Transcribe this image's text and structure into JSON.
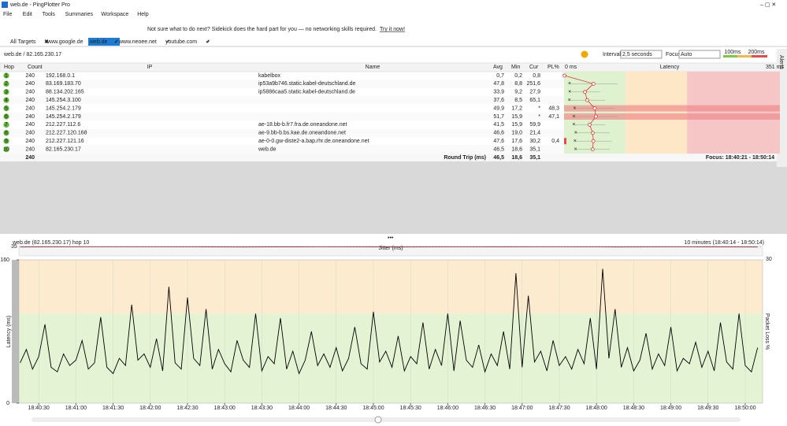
{
  "window": {
    "title": "web.de - PingPlotter Pro"
  },
  "menu": [
    "File",
    "Edit",
    "Tools",
    "Summaries",
    "Workspace",
    "Help"
  ],
  "banner": {
    "text": "Not sure what to do next? Sidekick does the hard part for you — no networking skills required.",
    "link": "Try it now!"
  },
  "tabs": [
    "All Targets",
    "www.google.de",
    "web.de",
    "www.neoee.net",
    "youtube.com"
  ],
  "target": "web.de / 82.165.230.17",
  "controls": {
    "interval_label": "Interval",
    "interval": "2,5 seconds",
    "focus_label": "Focus",
    "focus": "Auto",
    "scale": [
      {
        "value": 100,
        "label": "100ms"
      },
      {
        "value": 200,
        "label": "200ms"
      }
    ],
    "alerts": "Alerts"
  },
  "table": {
    "columns": [
      "Hop",
      "Count",
      "IP",
      "Name",
      "Avg",
      "Min",
      "Cur",
      "PL%",
      "Latency"
    ],
    "latency_range": [
      {
        "value": 0,
        "label": "0 ms"
      },
      {
        "value": 351,
        "label": "351 ms"
      }
    ],
    "rows": [
      [
        "1",
        "240",
        "192.168.0.1",
        "kabelbox",
        "0,7",
        "0,2",
        "0,8",
        null
      ],
      [
        "2",
        "240",
        "83.169.183.70",
        "ip53a9b746.static.kabel-deutschland.de",
        "47,8",
        "8,8",
        "251,6",
        null
      ],
      [
        "3",
        "240",
        "88.134.202.165",
        "ip5886caa5.static.kabel-deutschland.de",
        "33,9",
        "9,2",
        "27,9",
        null
      ],
      [
        "4",
        "240",
        "145.254.3.100",
        null,
        "37,6",
        "8,5",
        "65,1",
        null
      ],
      [
        "5",
        "240",
        "145.254.2.179",
        null,
        "49,9",
        "17,2",
        "*",
        "48,3"
      ],
      [
        "6",
        "240",
        "145.254.2.179",
        null,
        "51,7",
        "15,9",
        "*",
        "47,1"
      ],
      [
        "7",
        "240",
        "212.227.112.6",
        "ae-18.bb-b.fr7.fra.de.oneandone.net",
        "41,5",
        "15,9",
        "59,9",
        null
      ],
      [
        "8",
        "240",
        "212.227.120.168",
        "ae-9.bb-b.bs.kae.de.oneandone.net",
        "46,6",
        "19,0",
        "21,4",
        null
      ],
      [
        "9",
        "240",
        "212.227.121.16",
        "ae-0-0.gw-diste2-a.bap.rhr.de.oneandone.net",
        "47,6",
        "17,6",
        "30,2",
        "0,4"
      ],
      [
        "10",
        "240",
        "82.165.230.17",
        "web.de",
        "46,5",
        "18,6",
        "35,1",
        null
      ]
    ],
    "footer": {
      "count": "240",
      "label": "Round Trip (ms)",
      "avg": "46,5",
      "min": "18,6",
      "cur": "35,1",
      "focus": "Focus: 18:40:21 - 18:50:14"
    }
  },
  "chart_data": {
    "type": "line",
    "title": "web.de (82.165.230.17) hop 10",
    "subtitle": "10 minutes (18:40:14 - 18:50:14)",
    "y_label": "Latency (ms)",
    "y2_label": "Packet Loss %",
    "xlim": [
      "18:40:14",
      "18:50:14"
    ],
    "xticks": [
      "18:40:30",
      "18:41:00",
      "18:41:30",
      "18:42:00",
      "18:42:30",
      "18:43:00",
      "18:43:30",
      "18:44:00",
      "18:44:30",
      "18:45:00",
      "18:45:30",
      "18:46:00",
      "18:46:30",
      "18:47:00",
      "18:47:30",
      "18:48:00",
      "18:48:30",
      "18:49:00",
      "18:49:30",
      "18:50:00"
    ],
    "ylim": [
      0,
      160
    ],
    "yticks": [
      0,
      160
    ],
    "x": [
      "18:40:15",
      "18:40:20",
      "18:40:25",
      "18:40:30",
      "18:40:35",
      "18:40:40",
      "18:40:45",
      "18:40:50",
      "18:40:55",
      "18:41:00",
      "18:41:05",
      "18:41:10",
      "18:41:15",
      "18:41:20",
      "18:41:25",
      "18:41:30",
      "18:41:35",
      "18:41:40",
      "18:41:45",
      "18:41:50",
      "18:41:55",
      "18:42:00",
      "18:42:05",
      "18:42:10",
      "18:42:15",
      "18:42:20",
      "18:42:25",
      "18:42:30",
      "18:42:35",
      "18:42:40",
      "18:42:45",
      "18:42:50",
      "18:42:55",
      "18:43:00",
      "18:43:05",
      "18:43:10",
      "18:43:15",
      "18:43:20",
      "18:43:25",
      "18:43:30",
      "18:43:35",
      "18:43:40",
      "18:43:45",
      "18:43:50",
      "18:43:55",
      "18:44:00",
      "18:44:05",
      "18:44:10",
      "18:44:15",
      "18:44:20",
      "18:44:25",
      "18:44:30",
      "18:44:35",
      "18:44:40",
      "18:44:45",
      "18:44:50",
      "18:44:55",
      "18:45:00",
      "18:45:05",
      "18:45:10",
      "18:45:15",
      "18:45:20",
      "18:45:25",
      "18:45:30",
      "18:45:35",
      "18:45:40",
      "18:45:45",
      "18:45:50",
      "18:45:55",
      "18:46:00",
      "18:46:05",
      "18:46:10",
      "18:46:15",
      "18:46:20",
      "18:46:25",
      "18:46:30",
      "18:46:35",
      "18:46:40",
      "18:46:45",
      "18:46:50",
      "18:46:55",
      "18:47:00",
      "18:47:05",
      "18:47:10",
      "18:47:15",
      "18:47:20",
      "18:47:25",
      "18:47:30",
      "18:47:35",
      "18:47:40",
      "18:47:45",
      "18:47:50",
      "18:47:55",
      "18:48:00",
      "18:48:05",
      "18:48:10",
      "18:48:15",
      "18:48:20",
      "18:48:25",
      "18:48:30",
      "18:48:35",
      "18:48:40",
      "18:48:45",
      "18:48:50",
      "18:48:55",
      "18:49:00",
      "18:49:05",
      "18:49:10",
      "18:49:15",
      "18:49:20",
      "18:49:25",
      "18:49:30",
      "18:49:35",
      "18:49:40",
      "18:49:45",
      "18:49:50",
      "18:49:55",
      "18:50:00",
      "18:50:05",
      "18:50:10"
    ],
    "series": [
      {
        "color": "#000000",
        "values": [
          45,
          60,
          38,
          52,
          88,
          40,
          35,
          55,
          42,
          48,
          70,
          38,
          45,
          96,
          40,
          33,
          50,
          42,
          110,
          48,
          55,
          40,
          72,
          36,
          130,
          45,
          38,
          118,
          50,
          42,
          105,
          38,
          60,
          44,
          35,
          70,
          48,
          40,
          100,
          36,
          52,
          44,
          95,
          38,
          58,
          33,
          48,
          80,
          42,
          55,
          40,
          62,
          36,
          50,
          85,
          44,
          38,
          102,
          46,
          58,
          40,
          75,
          36,
          52,
          44,
          90,
          38,
          60,
          42,
          100,
          36,
          92,
          48,
          40,
          65,
          35,
          55,
          42,
          80,
          38,
          145,
          40,
          120,
          46,
          58,
          36,
          70,
          42,
          52,
          38,
          60,
          44,
          95,
          38,
          150,
          50,
          105,
          40,
          62,
          36,
          48,
          78,
          38,
          55,
          42,
          85,
          36,
          50,
          44,
          68,
          40,
          58,
          36,
          90,
          46,
          38,
          100,
          42,
          35,
          62
        ]
      }
    ],
    "jitter": {
      "label": "Jitter (ms)",
      "ylim": [
        0,
        35
      ],
      "yticks": [
        35
      ],
      "loss_max": 30,
      "color": "#9b2335",
      "x": [
        "18:40:15",
        "18:41:15",
        "18:42:15",
        "18:43:15",
        "18:44:15",
        "18:45:15",
        "18:46:15",
        "18:47:15",
        "18:48:15",
        "18:49:15",
        "18:50:10"
      ],
      "values": [
        33,
        34,
        33.5,
        33,
        34,
        33,
        33.5,
        34,
        33,
        33.5,
        33
      ]
    }
  }
}
